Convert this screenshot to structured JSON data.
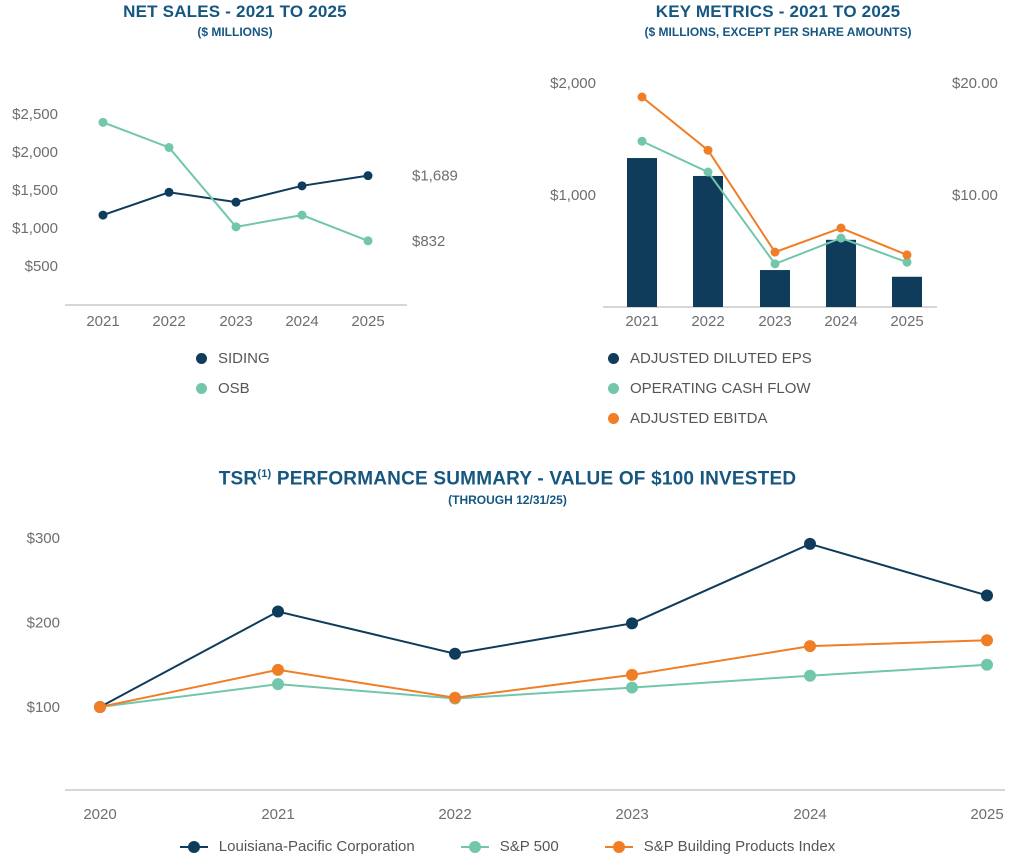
{
  "colors": {
    "navy": "#103C5C",
    "teal": "#72C6AC",
    "orange": "#F07E26",
    "title_blue": "#155781",
    "axis_text": "#6D6E71",
    "axis_line": "#C6C8CA"
  },
  "chart_data": [
    {
      "id": "net-sales",
      "type": "line",
      "title": "NET SALES - 2021 TO 2025",
      "subtitle": "($ MILLIONS)",
      "categories": [
        "2021",
        "2022",
        "2023",
        "2024",
        "2025"
      ],
      "series": [
        {
          "name": "SIDING",
          "color": "#103C5C",
          "values": [
            1170,
            1470,
            1340,
            1555,
            1689
          ],
          "end_label": "$1,689"
        },
        {
          "name": "OSB",
          "color": "#72C6AC",
          "values": [
            2390,
            2060,
            1015,
            1170,
            832
          ],
          "end_label": "$832"
        }
      ],
      "y_ticks": [
        {
          "value": 2500,
          "label": "$2,500"
        },
        {
          "value": 2000,
          "label": "$2,000"
        },
        {
          "value": 1500,
          "label": "$1,500"
        },
        {
          "value": 1000,
          "label": "$1,000"
        },
        {
          "value": 500,
          "label": "$500"
        }
      ],
      "ylim": [
        0,
        2700
      ],
      "grid": false,
      "legend_position": "bottom-left-stacked"
    },
    {
      "id": "key-metrics",
      "type": "combo",
      "title": "KEY METRICS - 2021 TO 2025",
      "subtitle": "($ MILLIONS, EXCEPT PER SHARE AMOUNTS)",
      "categories": [
        "2021",
        "2022",
        "2023",
        "2024",
        "2025"
      ],
      "bar_series": {
        "name": "ADJUSTED DILUTED EPS",
        "axis": "right",
        "color": "#103C5C",
        "values": [
          13.3,
          11.7,
          3.3,
          6.0,
          2.7
        ]
      },
      "line_series": [
        {
          "name": "OPERATING CASH FLOW",
          "color": "#72C6AC",
          "values": [
            1480,
            1205,
            385,
            615,
            400
          ]
        },
        {
          "name": "ADJUSTED EBITDA",
          "color": "#F07E26",
          "values": [
            1875,
            1400,
            490,
            705,
            465
          ]
        }
      ],
      "left_y_ticks": [
        {
          "value": 2000,
          "label": "$2,000"
        },
        {
          "value": 1000,
          "label": "$1,000"
        }
      ],
      "right_y_ticks": [
        {
          "value": 20,
          "label": "$20.00"
        },
        {
          "value": 10,
          "label": "$10.00"
        }
      ],
      "left_ylim": [
        0,
        2100
      ],
      "right_ylim": [
        0,
        21
      ],
      "grid": false,
      "legend_position": "bottom-left-stacked"
    },
    {
      "id": "tsr",
      "type": "line",
      "title_parts": {
        "prefix": "TSR",
        "superscript": "(1)",
        "rest": " PERFORMANCE SUMMARY - VALUE OF $100 INVESTED"
      },
      "subtitle": "(THROUGH 12/31/25)",
      "categories": [
        "2020",
        "2021",
        "2022",
        "2023",
        "2024",
        "2025"
      ],
      "series": [
        {
          "name": "Louisiana-Pacific Corporation",
          "color": "#103C5C",
          "values": [
            100,
            213,
            163,
            199,
            293,
            232
          ]
        },
        {
          "name": "S&P 500",
          "color": "#72C6AC",
          "values": [
            100,
            127,
            110,
            123,
            137,
            150
          ]
        },
        {
          "name": "S&P Building Products Index",
          "color": "#F07E26",
          "values": [
            100,
            144,
            111,
            138,
            172,
            179
          ]
        }
      ],
      "y_ticks": [
        {
          "value": 300,
          "label": "$300"
        },
        {
          "value": 200,
          "label": "$200"
        },
        {
          "value": 100,
          "label": "$100"
        }
      ],
      "ylim": [
        0,
        320
      ],
      "grid": false,
      "legend_position": "bottom-center-horizontal"
    }
  ]
}
